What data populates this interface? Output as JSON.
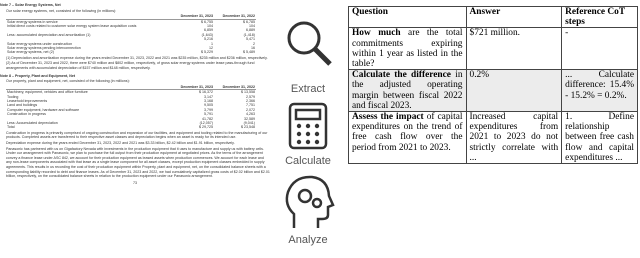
{
  "document": {
    "note7": {
      "title": "Note 7 – Solar Energy Systems, Net",
      "intro": "Our solar energy systems, net, consisted of the following (in millions):",
      "columns": [
        "December 31, 2023",
        "December 31, 2022"
      ],
      "rows": [
        [
          "Solar energy systems in service",
          "$ 6,755",
          "$ 6,785"
        ],
        [
          "Initial direct costs related to customer solar energy system lease acquisition costs",
          "104",
          "104"
        ],
        [
          "",
          "6,859",
          "6,889"
        ],
        [
          "Less: accumulated depreciation and amortization (1)",
          "(1,643)",
          "(1,418)"
        ],
        [
          "",
          "5,216",
          "5,471"
        ],
        [
          "Solar energy systems under construction",
          "1",
          "2"
        ],
        [
          "Solar energy systems pending interconnection",
          "12",
          "16"
        ],
        [
          "Solar energy systems, net (2)",
          "$ 5,229",
          "$ 5,489"
        ]
      ],
      "footnotes": [
        "(1) Depreciation and amortization expense during the years ended December 31, 2023, 2022 and 2021 was $235 million, $235 million and $236 million, respectively.",
        "(2) As of December 31, 2023 and 2022, there were $740 million and $802 million, respectively, of gross solar energy systems under lease pass-through fund arrangements with accumulated depreciation of $157 million and $148 million, respectively."
      ]
    },
    "note8": {
      "title": "Note 8 – Property, Plant and Equipment, Net",
      "intro": "Our property, plant and equipment, net, consisted of the following (in millions):",
      "columns": [
        "December 31, 2023",
        "December 31, 2022"
      ],
      "rows": [
        [
          "Machinery, equipment, vehicles and office furniture",
          "$ 16,372",
          "$ 13,558"
        ],
        [
          "Tooling",
          "3,147",
          "2,579"
        ],
        [
          "Leasehold improvements",
          "3,168",
          "2,366"
        ],
        [
          "Land and buildings",
          "9,505",
          "7,751"
        ],
        [
          "Computer equipment, hardware and software",
          "3,799",
          "2,072"
        ],
        [
          "Construction in progress",
          "5,791",
          "4,263"
        ],
        [
          "",
          "41,782",
          "32,589"
        ],
        [
          "Less: Accumulated depreciation",
          "(12,057)",
          "(9,041)"
        ],
        [
          "Total",
          "$ 29,725",
          "$ 23,548"
        ]
      ],
      "paragraphs": [
        "Construction in progress is primarily comprised of ongoing construction and expansion of our facilities, and equipment and tooling related to the manufacturing of our products. Completed assets are transferred to their respective asset classes and depreciation begins when an asset is ready for its intended use.",
        "Depreciation expense during the years ended December 31, 2023, 2022 and 2021 was $3.33 billion, $2.42 billion and $1.91 billion, respectively.",
        "Panasonic has partnered with us on Gigafactory Nevada with investments in the production equipment that it uses to manufacture and supply us with battery cells. Under our arrangement with Panasonic, we plan to purchase the full output from their production equipment at negotiated prices. As the terms of the arrangement convey a finance lease under ASC 842, we account for their production equipment as leased assets when production commences. We account for each lease and any non-lease components associated with that lease as a single lease component for all asset classes, except production equipment classes embedded in supply agreements. This results in us recording the cost of their production equipment within Property, plant and equipment, net, on the consolidated balance sheets with a corresponding liability recorded to debt and finance leases. As of December 31, 2023 and 2022, we had cumulatively capitalized gross costs of $2.02 billion and $2.01 billion, respectively, on the consolidated balance sheets in relation to the production equipment under our Panasonic arrangement."
      ],
      "page": "73"
    }
  },
  "icons": [
    "Extract",
    "Calculate",
    "Analyze"
  ],
  "table": {
    "header": [
      "Question",
      "Answer",
      "Reference CoT steps"
    ],
    "rows": [
      [
        {
          "lead": "How much",
          "rest": " are the total commitments expiring within 1 year as listed in the table?"
        },
        "$721 million.",
        "-"
      ],
      [
        {
          "lead": "Calculate the difference",
          "rest": " in the adjusted operating margin between fiscal 2022 and fiscal 2023."
        },
        "0.2%",
        "... Calculate difference: 15.4% - 15.2% = 0.2%."
      ],
      [
        {
          "lead": "Assess the impact",
          "rest": " of capital expenditures on the trend of free cash flow over the period from 2021 to 2023."
        },
        "Increased capital expenditures from 2021 to 2023 do not strictly correlate with ...",
        "1. Define relationship between free cash flow and capital expenditures ..."
      ]
    ]
  }
}
